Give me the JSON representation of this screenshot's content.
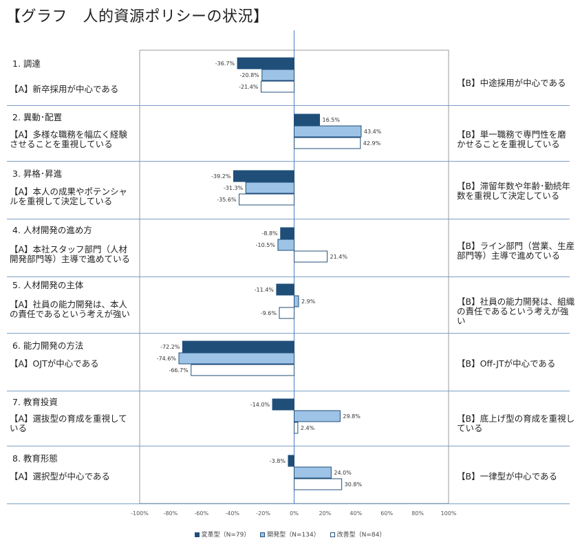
{
  "title": "【グラフ　人的資源ポリシーの状況】",
  "colors": {
    "series1_fill": "#1f4e79",
    "series2_fill": "#9dc3e6",
    "series3_fill": "#ffffff",
    "bar_border": "#1f4e79",
    "axis_line": "#7a9fc4",
    "separator": "#7a9fc4",
    "zero_line": "#4a7bbf"
  },
  "categories": [
    {
      "head": "1. 調達",
      "left": "【A】新卒採用が中心である",
      "right": "【B】中途採用が中心である"
    },
    {
      "head": "2. 異動･配置",
      "left": "【A】多様な職務を幅広く経験させることを重視している",
      "right": "【B】単一職務で専門性を磨かせることを重視している"
    },
    {
      "head": "3. 昇格･昇進",
      "left": "【A】本人の成果やポテンシャルを重視して決定している",
      "right": "【B】滞留年数や年齢･勤続年数を重視して決定している"
    },
    {
      "head": "4. 人材開発の進め方",
      "left": "【A】本社スタッフ部門（人材開発部門等）主導で進めている",
      "right": "【B】ライン部門（営業、生産部門等）主導で進めている"
    },
    {
      "head": "5. 人材開発の主体",
      "left": "【A】社員の能力開発は、本人の責任であるという考えが強い",
      "right": "【B】社員の能力開発は、組織の責任であるという考えが強い"
    },
    {
      "head": "6. 能力開発の方法",
      "left": "【A】OJTが中心である",
      "right": "【B】Off-JTが中心である"
    },
    {
      "head": "7. 教育投資",
      "left": "【A】選抜型の育成を重視している",
      "right": "【B】底上げ型の育成を重視している"
    },
    {
      "head": "8. 教育形態",
      "left": "【A】選択型が中心である",
      "right": "【B】一律型が中心である"
    }
  ],
  "chart_data": {
    "type": "bar",
    "orientation": "horizontal",
    "categories": [
      "1. 調達",
      "2. 異動･配置",
      "3. 昇格･昇進",
      "4. 人材開発の進め方",
      "5. 人材開発の主体",
      "6. 能力開発の方法",
      "7. 教育投資",
      "8. 教育形態"
    ],
    "series": [
      {
        "name": "変革型（N=79）",
        "values": [
          -36.7,
          16.5,
          -39.2,
          -8.8,
          -11.4,
          -72.2,
          -14.0,
          -3.8
        ],
        "labels": [
          "-36.7%",
          "16.5%",
          "-39.2%",
          "-8.8%",
          "-11.4%",
          "-72.2%",
          "-14.0%",
          "-3.8%"
        ]
      },
      {
        "name": "開発型（N=134）",
        "values": [
          -20.8,
          43.4,
          -31.3,
          -10.5,
          2.9,
          -74.6,
          29.8,
          24.0
        ],
        "labels": [
          "-20.8%",
          "43.4%",
          "-31.3%",
          "-10.5%",
          "2.9%",
          "-74.6%",
          "29.8%",
          "24.0%"
        ]
      },
      {
        "name": "改善型（N=84）",
        "values": [
          -21.4,
          42.9,
          -35.6,
          21.4,
          -9.6,
          -66.7,
          2.4,
          30.8
        ],
        "labels": [
          "-21.4%",
          "42.9%",
          "-35.6%",
          "21.4%",
          "-9.6%",
          "-66.7%",
          "2.4%",
          "30.8%"
        ]
      }
    ],
    "xlim": [
      -100,
      100
    ],
    "xticks": [
      -100,
      -80,
      -60,
      -40,
      -20,
      0,
      20,
      40,
      60,
      80,
      100
    ],
    "xtick_labels": [
      "-100%",
      "-80%",
      "-60%",
      "-40%",
      "-20%",
      "0%",
      "20%",
      "40%",
      "60%",
      "80%",
      "100%"
    ],
    "grid": false,
    "legend_position": "bottom-center"
  },
  "legend": [
    {
      "label": "変革型（N=79）"
    },
    {
      "label": "開発型（N=134）"
    },
    {
      "label": "改善型（N=84）"
    }
  ]
}
